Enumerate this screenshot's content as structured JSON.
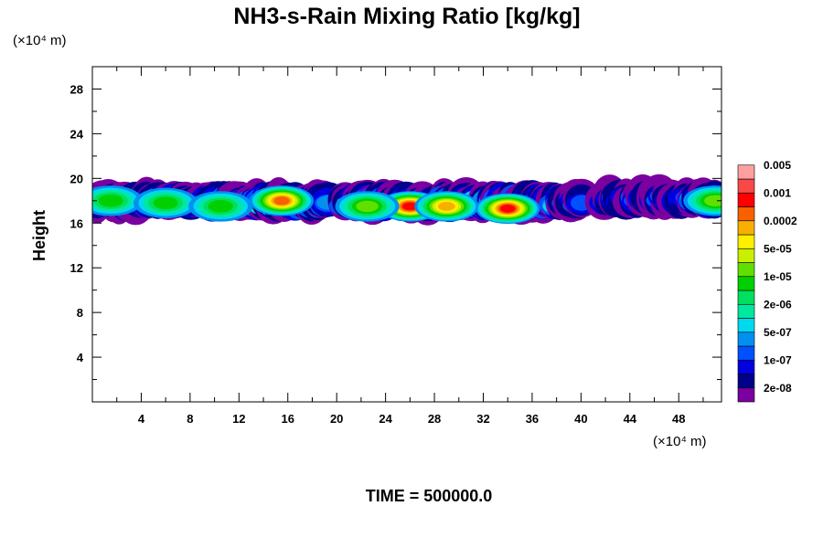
{
  "chart_data": {
    "type": "heatmap",
    "title": "NH3-s-Rain Mixing Ratio [kg/kg]",
    "ylabel": "Height",
    "xlabel": "",
    "x_unit": "(×10⁴ m)",
    "y_unit": "(×10⁴ m)",
    "footer": "TIME = 500000.0",
    "xlim": [
      0,
      51.5
    ],
    "ylim": [
      0,
      30
    ],
    "xticks": [
      4,
      8,
      12,
      16,
      20,
      24,
      28,
      32,
      36,
      40,
      44,
      48
    ],
    "yticks": [
      4,
      8,
      12,
      16,
      20,
      24,
      28
    ],
    "colorbar": {
      "colors": [
        "#7a00a0",
        "#00008a",
        "#0000e0",
        "#0050ff",
        "#0090f0",
        "#00d8f0",
        "#00e8a0",
        "#00e060",
        "#00d000",
        "#60e000",
        "#c8f000",
        "#fff000",
        "#f8b000",
        "#f86000",
        "#ff0000",
        "#f84848",
        "#ffa0a0"
      ],
      "labels": [
        "2e-08",
        "1e-07",
        "5e-07",
        "2e-06",
        "1e-05",
        "5e-05",
        "0.0002",
        "0.001",
        "0.005"
      ]
    },
    "cloud_bands": [
      {
        "x_start": 0.0,
        "x_end": 19.8,
        "y_bottom": 16.3,
        "y_top": 19.6,
        "cores": [
          {
            "x": 1.5,
            "y": 18.0,
            "level": 8
          },
          {
            "x": 6.0,
            "y": 17.8,
            "level": 8
          },
          {
            "x": 15.5,
            "y": 18.0,
            "level": 13
          },
          {
            "x": 10.5,
            "y": 17.5,
            "level": 8
          }
        ]
      },
      {
        "x_start": 20.3,
        "x_end": 40.8,
        "y_bottom": 16.3,
        "y_top": 19.6,
        "cores": [
          {
            "x": 26.0,
            "y": 17.5,
            "level": 14
          },
          {
            "x": 29.0,
            "y": 17.5,
            "level": 12
          },
          {
            "x": 34.0,
            "y": 17.3,
            "level": 14
          },
          {
            "x": 22.5,
            "y": 17.5,
            "level": 9
          }
        ]
      },
      {
        "x_start": 41.5,
        "x_end": 51.5,
        "y_bottom": 16.5,
        "y_top": 19.9,
        "cores": [
          {
            "x": 51.0,
            "y": 18.0,
            "level": 9
          },
          {
            "x": 44.5,
            "y": 19.2,
            "level": 2
          }
        ]
      }
    ]
  }
}
